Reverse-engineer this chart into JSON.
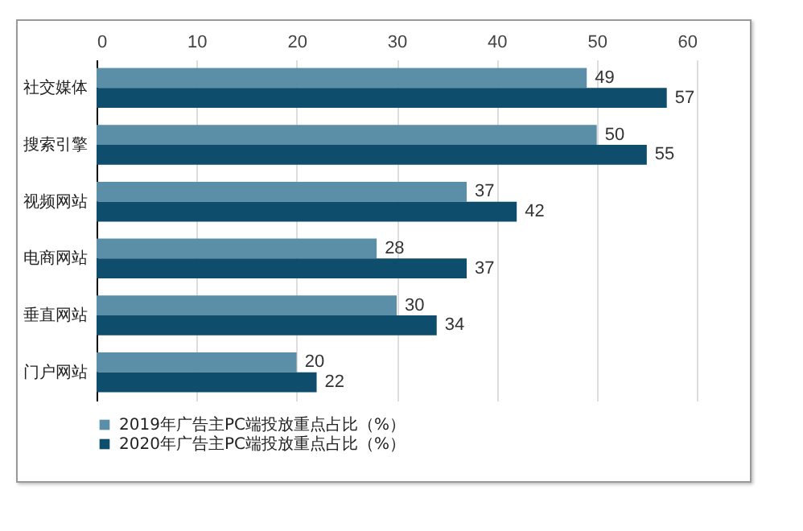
{
  "chart_data": {
    "type": "bar",
    "orientation": "horizontal",
    "categories": [
      "社交媒体",
      "搜索引擎",
      "视频网站",
      "电商网站",
      "垂直网站",
      "门户网站"
    ],
    "series": [
      {
        "name": "2019年广告主PC端投放重点占比（%）",
        "color": "#5b8fa8",
        "values": [
          49,
          50,
          37,
          28,
          30,
          20
        ]
      },
      {
        "name": "2020年广告主PC端投放重点占比（%）",
        "color": "#0e4d6b",
        "values": [
          57,
          55,
          42,
          37,
          34,
          22
        ]
      }
    ],
    "xlim": [
      0,
      60
    ],
    "xticks": [
      0,
      10,
      20,
      30,
      40,
      50,
      60
    ],
    "grid": "x",
    "legend": "bottom",
    "data_labels": true
  }
}
